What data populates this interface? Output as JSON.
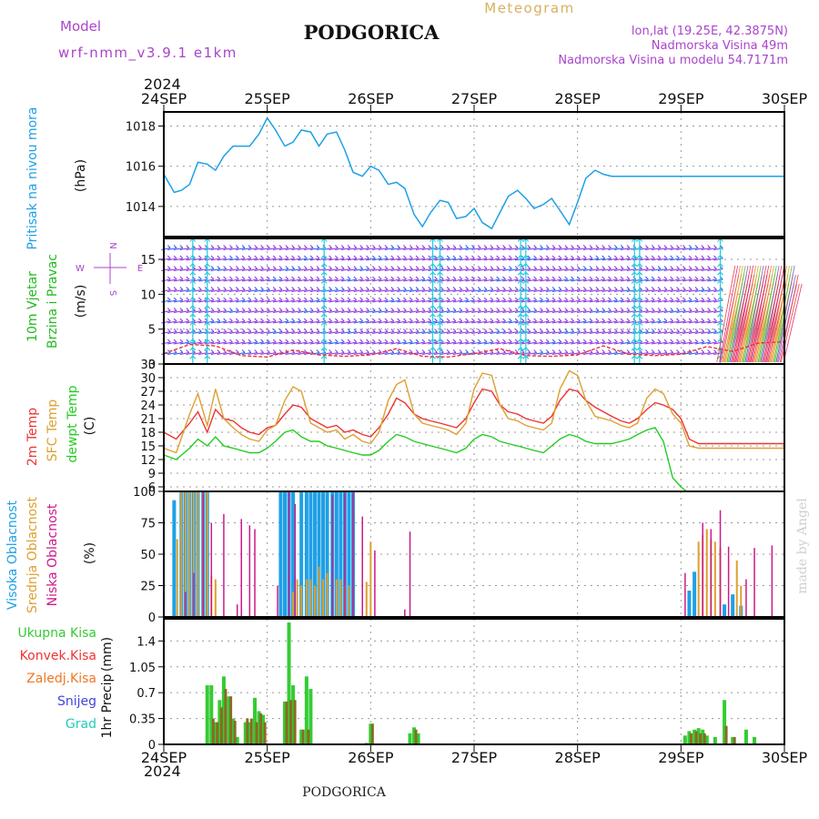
{
  "header": {
    "model_label": "Model",
    "model_name": "wrf-nmm_v3.9.1 e1km",
    "title": "PODGORICA",
    "meteogram_label": "Meteogram",
    "coords": "lon,lat (19.25E, 42.3875N)",
    "elevation": "Nadmorska Visina 49m",
    "model_elevation": "Nadmorska Visina u modelu 54.7171m",
    "footer": "PODGORICA",
    "credit": "made by Angel",
    "year": "2024"
  },
  "colors": {
    "pressure": "#1ea0e6",
    "wind_label": "#22bb22",
    "temp2m": "#ee3333",
    "sfc_temp": "#dda030",
    "dewpt": "#22cc22",
    "cloud_high": "#1ea0e6",
    "cloud_mid": "#dda030",
    "cloud_low": "#cc1a8a",
    "precip_total": "#33cc33",
    "precip_conv": "#ee3333",
    "precip_frozen": "#ee7722",
    "snow": "#4444dd",
    "hail": "#22ccbb",
    "compass": "#aa44cc",
    "header_purple": "#aa44cc",
    "meteogram_gold": "#d8b060"
  },
  "chart_data": [
    {
      "type": "line",
      "panel": "pressure",
      "x_ticks": [
        "24SEP",
        "25SEP",
        "26SEP",
        "27SEP",
        "28SEP",
        "29SEP",
        "30SEP"
      ],
      "ylabel_main": "Pritisak na nivou mora",
      "ylabel_unit": "(hPa)",
      "ylim": [
        1012.5,
        1018.7
      ],
      "yticks": [
        "1018",
        "1016",
        "1014"
      ],
      "ytick_values": [
        1018,
        1016,
        1014
      ],
      "grid": true,
      "series": [
        {
          "x": [
            0,
            0.1,
            0.17,
            0.25,
            0.33,
            0.42,
            0.5,
            0.58,
            0.67,
            0.75,
            0.83,
            0.92,
            1,
            1.08,
            1.17,
            1.25,
            1.33,
            1.42,
            1.5,
            1.58,
            1.67,
            1.75,
            1.83,
            1.92,
            2,
            2.08,
            2.17,
            2.25,
            2.33,
            2.42,
            2.5,
            2.58,
            2.67,
            2.75,
            2.83,
            2.92,
            3,
            3.08,
            3.17,
            3.25,
            3.33,
            3.42,
            3.5,
            3.58,
            3.67,
            3.75,
            3.83,
            3.92,
            4,
            4.08,
            4.17,
            4.25,
            4.33,
            4.42,
            4.5,
            4.58,
            4.67,
            4.75,
            4.83,
            4.92,
            5,
            5.08,
            5.17,
            5.25,
            5.33,
            5.42,
            5.5,
            5.58,
            5.67,
            5.75,
            5.83,
            5.92,
            6
          ],
          "values": [
            1015.6,
            1014.7,
            1014.8,
            1015.1,
            1016.2,
            1016.1,
            1015.8,
            1016.5,
            1017.0,
            1017.0,
            1017.0,
            1017.6,
            1018.4,
            1017.8,
            1017.0,
            1017.2,
            1017.8,
            1017.7,
            1017.0,
            1017.6,
            1017.7,
            1016.8,
            1015.7,
            1015.5,
            1016.0,
            1015.8,
            1015.1,
            1015.2,
            1014.9,
            1013.6,
            1013.0,
            1013.7,
            1014.3,
            1014.2,
            1013.4,
            1013.5,
            1013.9,
            1013.2,
            1012.9,
            1013.7,
            1014.5,
            1014.8,
            1014.4,
            1013.9,
            1014.1,
            1014.4,
            1013.8,
            1013.1,
            1014.2,
            1015.4,
            1015.8,
            1015.6,
            1015.5,
            1015.5,
            1015.5,
            1015.5,
            1015.5,
            1015.5,
            1015.5,
            1015.5,
            1015.5,
            1015.5,
            1015.5,
            1015.5,
            1015.5,
            1015.5,
            1015.5,
            1015.5,
            1015.5,
            1015.5,
            1015.5,
            1015.5,
            1015.5
          ]
        }
      ]
    },
    {
      "type": "line",
      "panel": "wind",
      "ylabel_main": "10m Vjetar",
      "ylabel_sub": "Brzina i Pravac",
      "ylabel_unit": "(m/s)",
      "ylim": [
        0,
        18
      ],
      "yticks": [
        "15",
        "10",
        "5",
        "0"
      ],
      "ytick_values": [
        15,
        10,
        5,
        0
      ],
      "compass": {
        "n": "N",
        "w": "W",
        "e": "E",
        "s": "S"
      },
      "grid": true,
      "series": [
        {
          "name": "wind speed",
          "x": [
            0,
            0.25,
            0.5,
            0.75,
            1,
            1.25,
            1.5,
            1.75,
            2,
            2.25,
            2.5,
            2.75,
            3,
            3.25,
            3.5,
            3.75,
            4,
            4.25,
            4.5,
            4.75,
            5,
            5.25,
            5.5,
            5.75,
            6
          ],
          "values": [
            1.5,
            2.8,
            2.6,
            1.2,
            1.0,
            2.0,
            1.3,
            1.1,
            1.3,
            2.2,
            1.1,
            1.0,
            1.5,
            2.2,
            1.2,
            1.1,
            1.3,
            2.6,
            1.4,
            1.2,
            1.4,
            2.5,
            1.8,
            3.0,
            3.2
          ]
        }
      ]
    },
    {
      "type": "line",
      "panel": "temperature",
      "ylabel_main": "2m Temp",
      "ylabel_sub": "SFC Temp",
      "ylabel_third": "dewpt Temp",
      "ylabel_unit": "(C)",
      "ylim": [
        5,
        33
      ],
      "yticks": [
        "33",
        "30",
        "27",
        "24",
        "21",
        "18",
        "15",
        "12",
        "9",
        "6"
      ],
      "ytick_values": [
        33,
        30,
        27,
        24,
        21,
        18,
        15,
        12,
        9,
        6
      ],
      "grid": true,
      "x": [
        0,
        0.12,
        0.25,
        0.33,
        0.42,
        0.5,
        0.58,
        0.67,
        0.75,
        0.83,
        0.92,
        1,
        1.08,
        1.17,
        1.25,
        1.33,
        1.42,
        1.5,
        1.58,
        1.67,
        1.75,
        1.83,
        1.92,
        2,
        2.08,
        2.17,
        2.25,
        2.33,
        2.42,
        2.5,
        2.58,
        2.67,
        2.75,
        2.83,
        2.92,
        3,
        3.08,
        3.17,
        3.25,
        3.33,
        3.42,
        3.5,
        3.58,
        3.67,
        3.75,
        3.83,
        3.92,
        4,
        4.08,
        4.17,
        4.25,
        4.33,
        4.42,
        4.5,
        4.58,
        4.67,
        4.75,
        4.83,
        4.92,
        5,
        5.08,
        5.17,
        5.25,
        5.33,
        5.42,
        5.5,
        5.58,
        5.67,
        5.75,
        5.83,
        5.92,
        6
      ],
      "series": [
        {
          "name": "2m Temp",
          "values": [
            18,
            16.5,
            20,
            22.5,
            18,
            23,
            21,
            20.5,
            19,
            18,
            17.5,
            19,
            19.5,
            22,
            24,
            23.5,
            21,
            20,
            19,
            19.5,
            18,
            18.5,
            17.5,
            17,
            19,
            22,
            25.5,
            24.5,
            22,
            21,
            20.5,
            20,
            19.5,
            19,
            21,
            24.5,
            27.5,
            27,
            24,
            22.5,
            22,
            21,
            20.5,
            20,
            21.5,
            25,
            27.5,
            27,
            25,
            23.5,
            22.5,
            21.5,
            20.5,
            20,
            21,
            23,
            24.5,
            24,
            23,
            21,
            16.5,
            15.5,
            15.5,
            15.5,
            15.5,
            15.5,
            15.5,
            15.5,
            15.5,
            15.5,
            15.5,
            15.5
          ]
        },
        {
          "name": "SFC Temp",
          "values": [
            14.5,
            13.5,
            22,
            26.5,
            19.5,
            27.5,
            21,
            19,
            17.5,
            16.5,
            16,
            18.5,
            19.5,
            25,
            28,
            27,
            20,
            19,
            18,
            18.5,
            16.5,
            17.5,
            16,
            15.5,
            18,
            25,
            28.5,
            29.5,
            22,
            20,
            19.5,
            19,
            18.5,
            17.5,
            20,
            27.5,
            31,
            30.5,
            24,
            21,
            20.5,
            19.5,
            19,
            18.5,
            20,
            27.5,
            31.5,
            30.5,
            25,
            21.5,
            21,
            20.5,
            19.5,
            19,
            20,
            25.5,
            27.5,
            26.5,
            22,
            20,
            15,
            14.5,
            14.5,
            14.5,
            14.5,
            14.5,
            14.5,
            14.5,
            14.5,
            14.5,
            14.5,
            14.5
          ]
        },
        {
          "name": "dewpt Temp",
          "values": [
            13,
            12,
            14.5,
            16.5,
            15,
            17,
            15,
            14.5,
            14,
            13.5,
            13.5,
            14.5,
            16,
            18,
            18.5,
            17,
            16,
            16,
            15,
            14.5,
            14,
            13.5,
            13,
            13,
            14,
            16,
            17.5,
            17,
            16,
            15.5,
            15,
            14.5,
            14,
            13.5,
            14.5,
            16.5,
            17.5,
            17,
            16,
            15.5,
            15,
            14.5,
            14,
            13.5,
            15,
            16.5,
            17.5,
            17,
            16,
            15.5,
            15.5,
            15.5,
            16,
            16.5,
            17.5,
            18.5,
            19,
            16,
            8,
            6,
            4.5,
            4.5,
            4.5,
            4.5,
            4.5,
            4.5,
            4.5,
            4.5,
            4.5,
            4.5,
            4.5,
            4.5
          ]
        }
      ]
    },
    {
      "type": "bar",
      "panel": "clouds",
      "ylabel_main": "Visoka Oblacnost",
      "ylabel_sub": "Srednja Oblacnost",
      "ylabel_third": "Niska Oblacnost",
      "ylabel_unit": "(%)",
      "ylim": [
        0,
        100
      ],
      "yticks": [
        "100",
        "75",
        "50",
        "25",
        "0"
      ],
      "ytick_values": [
        100,
        75,
        50,
        25,
        0
      ],
      "grid": true,
      "series": [
        {
          "name": "Visoka Oblacnost",
          "x": [
            0.1,
            0.17,
            0.21,
            0.25,
            0.29,
            0.33,
            0.38,
            0.42,
            1.13,
            1.17,
            1.21,
            1.25,
            1.33,
            1.38,
            1.42,
            1.46,
            1.5,
            1.54,
            1.58,
            1.63,
            1.67,
            1.71,
            1.75,
            1.79,
            1.83,
            5.08,
            5.13,
            5.42,
            5.5,
            5.58
          ],
          "values": [
            93,
            100,
            100,
            100,
            100,
            100,
            100,
            100,
            100,
            100,
            100,
            100,
            100,
            100,
            100,
            100,
            100,
            100,
            100,
            100,
            100,
            100,
            100,
            100,
            100,
            21,
            36,
            10,
            18,
            9
          ]
        },
        {
          "name": "Srednja Oblacnost",
          "x": [
            0.13,
            0.17,
            0.21,
            0.25,
            0.29,
            0.33,
            0.38,
            0.42,
            0.46,
            0.5,
            1.25,
            1.29,
            1.33,
            1.38,
            1.42,
            1.46,
            1.5,
            1.54,
            1.58,
            1.67,
            1.71,
            1.75,
            1.79,
            1.96,
            2,
            5.17,
            5.21,
            5.25,
            5.29,
            5.33,
            5.38,
            5.54,
            5.58
          ],
          "values": [
            62,
            100,
            100,
            100,
            100,
            100,
            100,
            100,
            33,
            30,
            20,
            30,
            25,
            30,
            30,
            25,
            40,
            30,
            35,
            30,
            30,
            25,
            25,
            28,
            60,
            60,
            65,
            70,
            62,
            60,
            55,
            45,
            25
          ]
        },
        {
          "name": "Niska Oblacnost",
          "x": [
            0.21,
            0.29,
            0.38,
            0.46,
            0.58,
            0.71,
            0.75,
            0.83,
            0.88,
            1.1,
            1.21,
            1.27,
            1.63,
            1.75,
            1.83,
            1.92,
            2.04,
            2.33,
            2.38,
            5.04,
            5.21,
            5.29,
            5.38,
            5.46,
            5.63,
            5.71,
            5.88
          ],
          "values": [
            20,
            35,
            100,
            75,
            82,
            10,
            78,
            73,
            70,
            25,
            99,
            90,
            97,
            99,
            99,
            80,
            53,
            6,
            68,
            35,
            75,
            70,
            85,
            56,
            30,
            55,
            57
          ]
        }
      ]
    },
    {
      "type": "bar",
      "panel": "precip",
      "ylabel_main": "1hr Precip",
      "ylabel_unit": "(mm)",
      "ylim": [
        0,
        1.7
      ],
      "yticks": [
        "1.4",
        "1.05",
        "0.7",
        "0.35",
        "0"
      ],
      "ytick_values": [
        1.4,
        1.05,
        0.7,
        0.35,
        0
      ],
      "legend": [
        "Ukupna Kisa",
        "Konvek.Kisa",
        "Zaledj.Kisa",
        "Snijeg",
        "Grad"
      ],
      "grid": true,
      "series": [
        {
          "name": "Ukupna Kisa",
          "x": [
            0.42,
            0.46,
            0.5,
            0.54,
            0.58,
            0.63,
            0.67,
            0.71,
            0.79,
            0.83,
            0.88,
            0.92,
            0.96,
            1.17,
            1.21,
            1.25,
            1.33,
            1.38,
            1.42,
            1.96,
            2,
            2.38,
            2.42,
            2.46,
            5.04,
            5.08,
            5.13,
            5.17,
            5.21,
            5.25,
            5.33,
            5.42,
            5.5,
            5.63,
            5.71
          ],
          "values": [
            0.8,
            0.8,
            0.3,
            0.6,
            0.92,
            0.65,
            0.35,
            0.1,
            0.3,
            0.3,
            0.63,
            0.45,
            0.4,
            0.58,
            1.65,
            0.8,
            0.2,
            0.92,
            0.75,
            0.02,
            0.28,
            0.15,
            0.23,
            0.15,
            0.12,
            0.18,
            0.2,
            0.22,
            0.2,
            0.12,
            0.1,
            0.6,
            0.1,
            0.2,
            0.1
          ]
        },
        {
          "name": "Konvek.Kisa",
          "x": [
            0.46,
            0.5,
            0.54,
            0.58,
            0.63,
            0.67,
            0.79,
            0.83,
            0.88,
            0.92,
            0.96,
            1.17,
            1.21,
            1.25,
            1.33,
            1.38,
            2,
            2.42,
            5.08,
            5.13,
            5.17,
            5.21,
            5.42,
            5.5
          ],
          "values": [
            0.35,
            0.3,
            0.5,
            0.75,
            0.65,
            0.32,
            0.35,
            0.35,
            0.3,
            0.42,
            0.3,
            0.58,
            0.6,
            0.6,
            0.2,
            0.2,
            0.28,
            0.2,
            0.15,
            0.18,
            0.15,
            0.15,
            0.25,
            0.1
          ]
        }
      ]
    }
  ]
}
